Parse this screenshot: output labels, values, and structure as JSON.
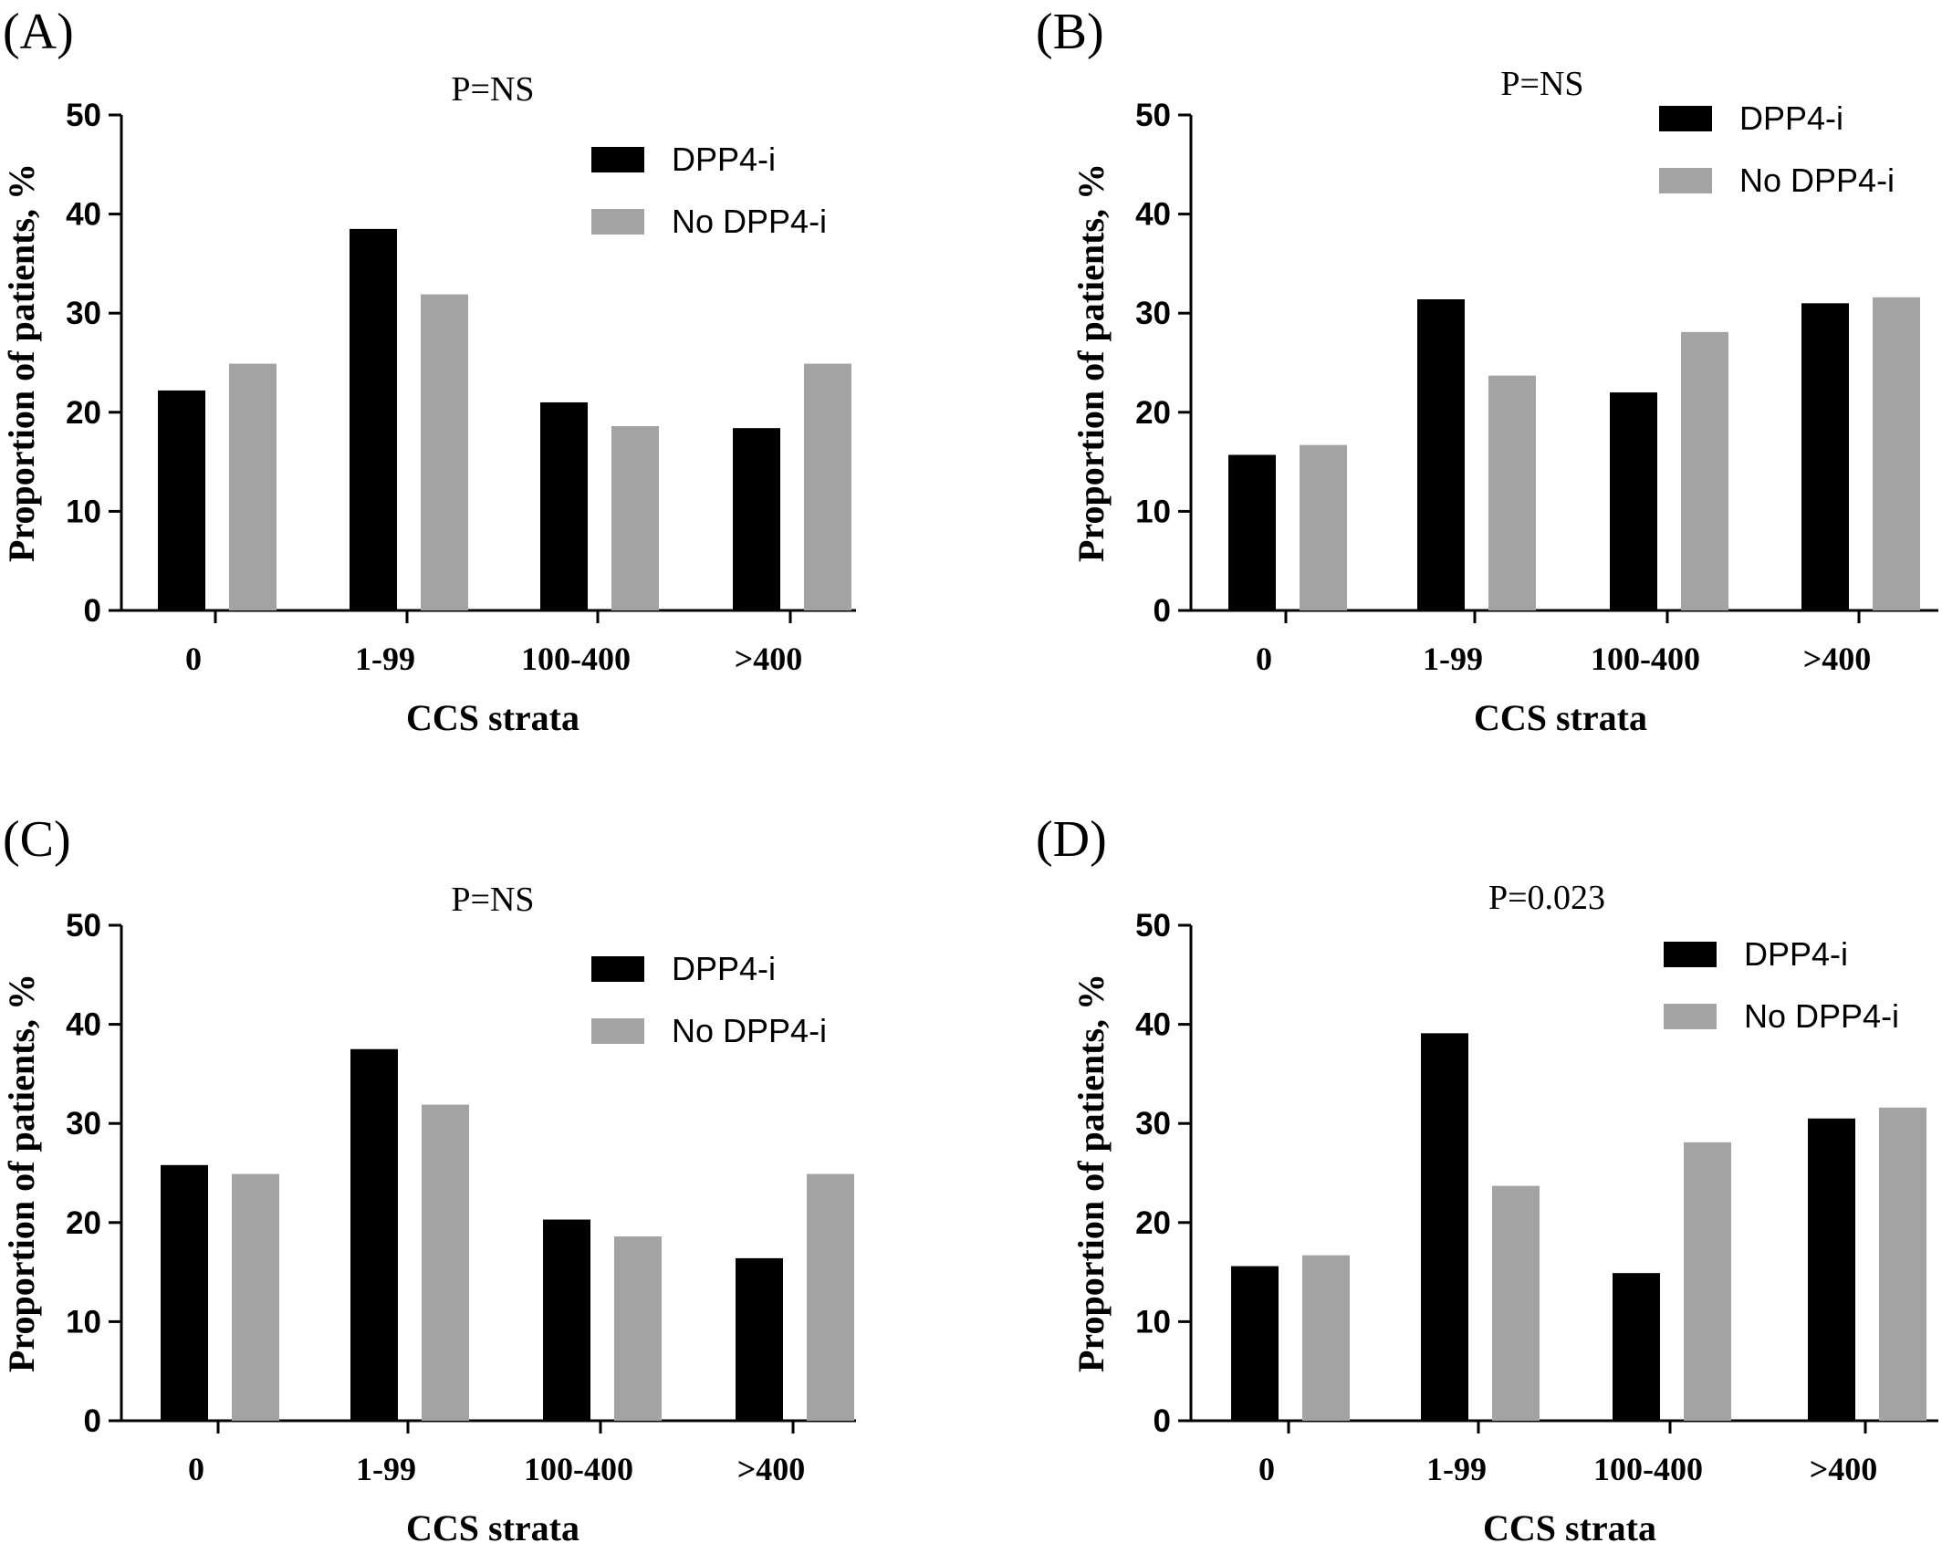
{
  "colors": {
    "dpp4": "#000000",
    "no_dpp4": "#a3a3a3"
  },
  "chart_data": [
    {
      "type": "bar",
      "panel": "(A)",
      "pvalue": "P=NS",
      "categories": [
        "0",
        "1-99",
        "100-400",
        ">400"
      ],
      "series": [
        {
          "name": "DPP4-i",
          "values": [
            22.2,
            38.5,
            21.0,
            18.4
          ]
        },
        {
          "name": "No DPP4-i",
          "values": [
            24.9,
            31.9,
            18.6,
            24.9
          ]
        }
      ],
      "xlabel": "CCS strata",
      "ylabel": "Proportion of patients, %",
      "ylim": [
        0,
        50
      ],
      "yticks": [
        "0",
        "10",
        "20",
        "30",
        "40",
        "50"
      ],
      "legend": "top-right",
      "grid": false
    },
    {
      "type": "bar",
      "panel": "(B)",
      "pvalue": "P=NS",
      "categories": [
        "0",
        "1-99",
        "100-400",
        ">400"
      ],
      "series": [
        {
          "name": "DPP4-i",
          "values": [
            15.7,
            31.4,
            22.0,
            31.0
          ]
        },
        {
          "name": "No DPP4-i",
          "values": [
            16.7,
            23.7,
            28.1,
            31.6
          ]
        }
      ],
      "xlabel": "CCS strata",
      "ylabel": "Proportion of patients, %",
      "ylim": [
        0,
        50
      ],
      "yticks": [
        "0",
        "10",
        "20",
        "30",
        "40",
        "50"
      ],
      "legend": "top-right",
      "grid": false
    },
    {
      "type": "bar",
      "panel": "(C)",
      "pvalue": "P=NS",
      "categories": [
        "0",
        "1-99",
        "100-400",
        ">400"
      ],
      "series": [
        {
          "name": "DPP4-i",
          "values": [
            25.8,
            37.5,
            20.3,
            16.4
          ]
        },
        {
          "name": "No DPP4-i",
          "values": [
            24.9,
            31.9,
            18.6,
            24.9
          ]
        }
      ],
      "xlabel": "CCS strata",
      "ylabel": "Proportion of patients, %",
      "ylim": [
        0,
        50
      ],
      "yticks": [
        "0",
        "10",
        "20",
        "30",
        "40",
        "50"
      ],
      "legend": "top-right",
      "grid": false
    },
    {
      "type": "bar",
      "panel": "(D)",
      "pvalue": "P=0.023",
      "categories": [
        "0",
        "1-99",
        "100-400",
        ">400"
      ],
      "series": [
        {
          "name": "DPP4-i",
          "values": [
            15.6,
            39.1,
            14.9,
            30.5
          ]
        },
        {
          "name": "No DPP4-i",
          "values": [
            16.7,
            23.7,
            28.1,
            31.6
          ]
        }
      ],
      "xlabel": "CCS strata",
      "ylabel": "Proportion of patients, %",
      "ylim": [
        0,
        50
      ],
      "yticks": [
        "0",
        "10",
        "20",
        "30",
        "40",
        "50"
      ],
      "legend": "top-right",
      "grid": false
    }
  ]
}
